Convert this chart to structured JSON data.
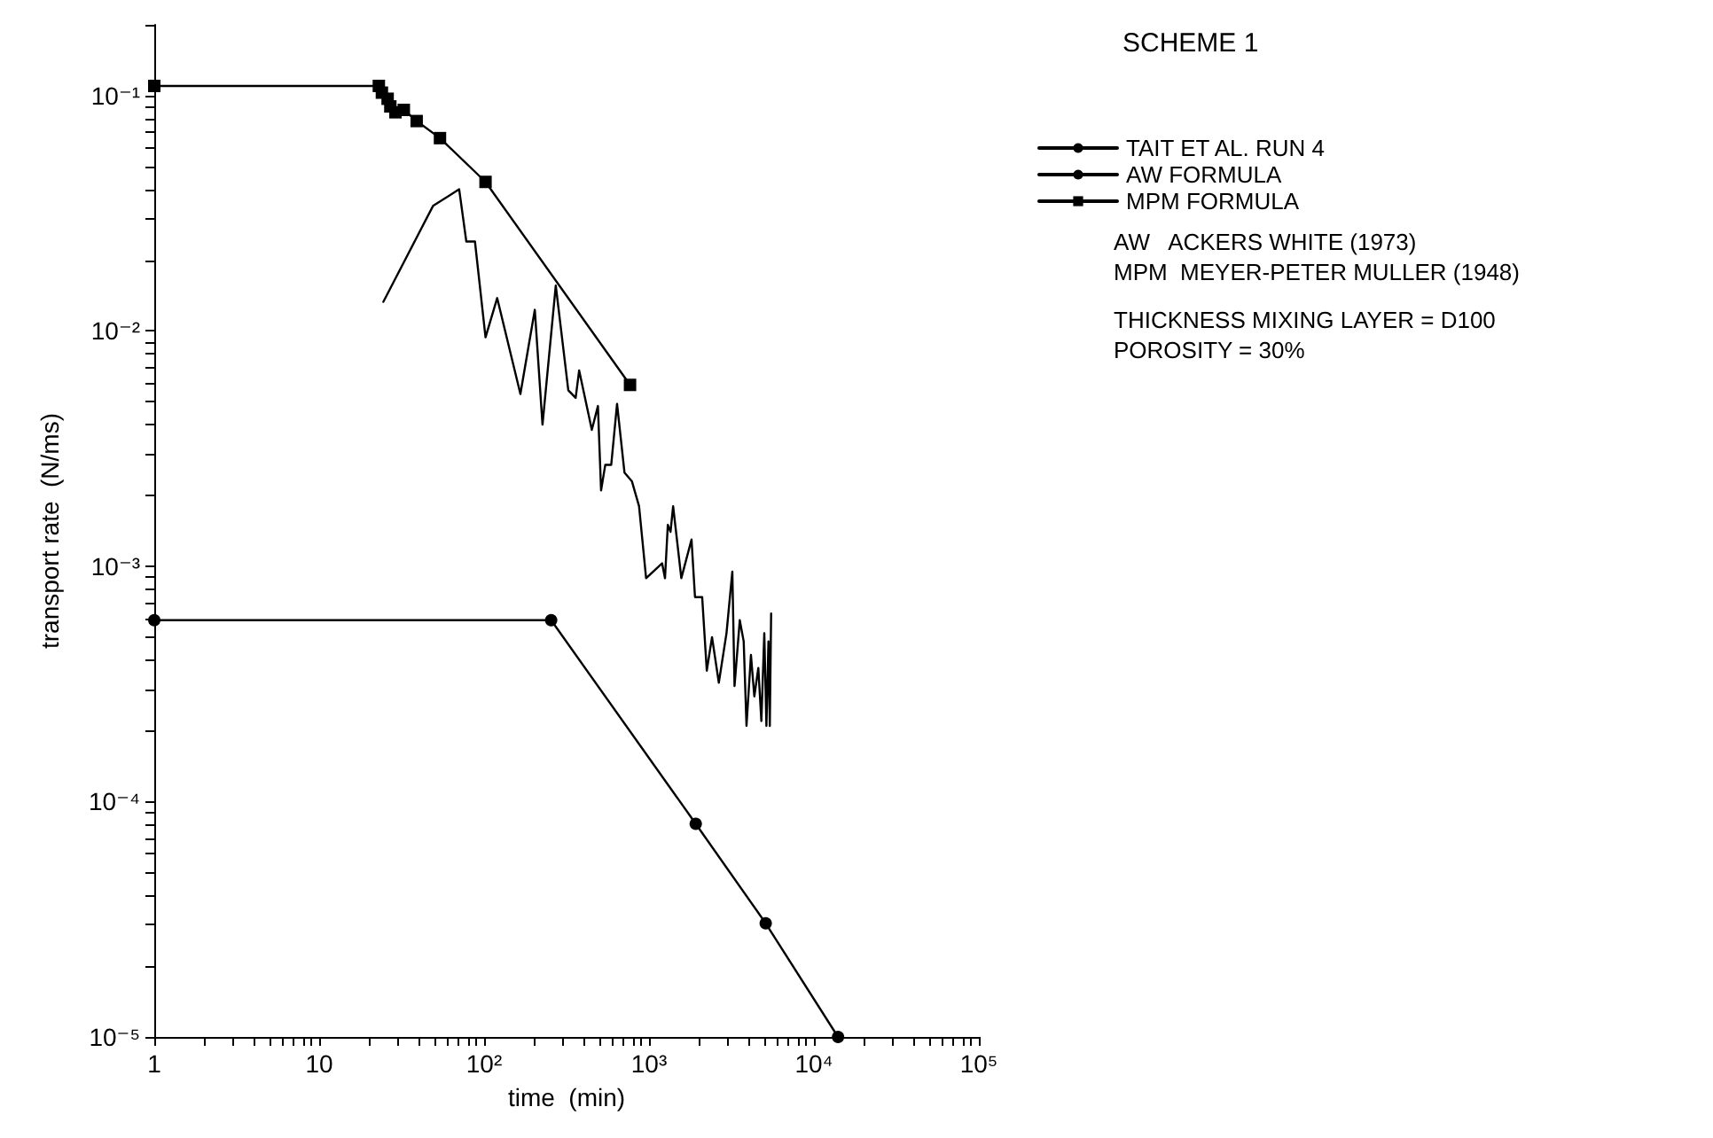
{
  "chart_data": {
    "type": "line",
    "title": "SCHEME 1",
    "xlabel": "time  (min)",
    "ylabel": "transport rate  (N/ms)",
    "log": "xy",
    "grid": false,
    "legend": "right",
    "line_style": "solid",
    "xlim": [
      1,
      100000
    ],
    "ylim": [
      1e-05,
      0.2
    ],
    "xticks": [
      {
        "value": 1,
        "label": "1"
      },
      {
        "value": 2,
        "label": null
      },
      {
        "value": 3,
        "label": null
      },
      {
        "value": 4,
        "label": null
      },
      {
        "value": 5,
        "label": null
      },
      {
        "value": 6,
        "label": null
      },
      {
        "value": 7,
        "label": null
      },
      {
        "value": 8,
        "label": null
      },
      {
        "value": 9,
        "label": null
      },
      {
        "value": 10,
        "label": "10"
      },
      {
        "value": 20,
        "label": null
      },
      {
        "value": 30,
        "label": null
      },
      {
        "value": 40,
        "label": null
      },
      {
        "value": 50,
        "label": null
      },
      {
        "value": 60,
        "label": null
      },
      {
        "value": 70,
        "label": null
      },
      {
        "value": 80,
        "label": null
      },
      {
        "value": 90,
        "label": null
      },
      {
        "value": 100,
        "label": "10²"
      },
      {
        "value": 200,
        "label": null
      },
      {
        "value": 300,
        "label": null
      },
      {
        "value": 400,
        "label": null
      },
      {
        "value": 500,
        "label": null
      },
      {
        "value": 600,
        "label": null
      },
      {
        "value": 700,
        "label": null
      },
      {
        "value": 800,
        "label": null
      },
      {
        "value": 900,
        "label": null
      },
      {
        "value": 1000,
        "label": "10³"
      },
      {
        "value": 2000,
        "label": null
      },
      {
        "value": 3000,
        "label": null
      },
      {
        "value": 4000,
        "label": null
      },
      {
        "value": 5000,
        "label": null
      },
      {
        "value": 6000,
        "label": null
      },
      {
        "value": 7000,
        "label": null
      },
      {
        "value": 8000,
        "label": null
      },
      {
        "value": 9000,
        "label": null
      },
      {
        "value": 10000,
        "label": "10⁴"
      },
      {
        "value": 20000,
        "label": null
      },
      {
        "value": 30000,
        "label": null
      },
      {
        "value": 40000,
        "label": null
      },
      {
        "value": 50000,
        "label": null
      },
      {
        "value": 60000,
        "label": null
      },
      {
        "value": 70000,
        "label": null
      },
      {
        "value": 80000,
        "label": null
      },
      {
        "value": 90000,
        "label": null
      },
      {
        "value": 100000,
        "label": "10⁵"
      }
    ],
    "yticks": [
      {
        "value": 1e-05,
        "label": "10⁻⁵"
      },
      {
        "value": 2e-05,
        "label": null
      },
      {
        "value": 3e-05,
        "label": null
      },
      {
        "value": 4e-05,
        "label": null
      },
      {
        "value": 5e-05,
        "label": null
      },
      {
        "value": 6e-05,
        "label": null
      },
      {
        "value": 7e-05,
        "label": null
      },
      {
        "value": 8e-05,
        "label": null
      },
      {
        "value": 9e-05,
        "label": null
      },
      {
        "value": 0.0001,
        "label": "10⁻⁴"
      },
      {
        "value": 0.0002,
        "label": null
      },
      {
        "value": 0.0003,
        "label": null
      },
      {
        "value": 0.0004,
        "label": null
      },
      {
        "value": 0.0005,
        "label": null
      },
      {
        "value": 0.0006,
        "label": null
      },
      {
        "value": 0.0007,
        "label": null
      },
      {
        "value": 0.0008,
        "label": null
      },
      {
        "value": 0.0009,
        "label": null
      },
      {
        "value": 0.001,
        "label": "10⁻³"
      },
      {
        "value": 0.002,
        "label": null
      },
      {
        "value": 0.003,
        "label": null
      },
      {
        "value": 0.004,
        "label": null
      },
      {
        "value": 0.005,
        "label": null
      },
      {
        "value": 0.006,
        "label": null
      },
      {
        "value": 0.007,
        "label": null
      },
      {
        "value": 0.008,
        "label": null
      },
      {
        "value": 0.009,
        "label": null
      },
      {
        "value": 0.01,
        "label": "10⁻²"
      },
      {
        "value": 0.02,
        "label": null
      },
      {
        "value": 0.03,
        "label": null
      },
      {
        "value": 0.04,
        "label": null
      },
      {
        "value": 0.05,
        "label": null
      },
      {
        "value": 0.06,
        "label": null
      },
      {
        "value": 0.07,
        "label": null
      },
      {
        "value": 0.08,
        "label": null
      },
      {
        "value": 0.09,
        "label": null
      },
      {
        "value": 0.1,
        "label": "10⁻¹"
      },
      {
        "value": 0.2,
        "label": null
      }
    ],
    "annotations": [
      "AW   ACKERS WHITE (1973)",
      "MPM  MEYER-PETER MULLER (1948)",
      "THICKNESS MIXING LAYER = D100",
      "POROSITY = 30%"
    ],
    "series": [
      {
        "name": "TAIT ET AL. RUN 4",
        "color": "#000000",
        "marker": "none",
        "x": [
          24.5,
          49,
          70.6,
          78,
          88,
          102,
          120,
          166,
          203,
          226,
          272,
          324,
          359,
          377,
          450,
          490,
          512,
          543,
          590,
          640,
          710,
          787,
          870,
          960,
          1200,
          1250,
          1300,
          1350,
          1400,
          1570,
          1810,
          1900,
          2100,
          2240,
          2410,
          2650,
          2950,
          3200,
          3300,
          3550,
          3750,
          3900,
          4150,
          4350,
          4600,
          4800,
          5000,
          5150,
          5300,
          5400,
          5500
        ],
        "values": [
          0.0133,
          0.034,
          0.04,
          0.024,
          0.024,
          0.0094,
          0.0138,
          0.0054,
          0.0123,
          0.004,
          0.0156,
          0.0056,
          0.0052,
          0.0068,
          0.0038,
          0.0048,
          0.0021,
          0.0027,
          0.0027,
          0.0049,
          0.0025,
          0.0023,
          0.0018,
          0.00089,
          0.00103,
          0.00089,
          0.0015,
          0.0014,
          0.0018,
          0.00089,
          0.0013,
          0.00074,
          0.00074,
          0.00036,
          0.0005,
          0.00032,
          0.00052,
          0.00095,
          0.00031,
          0.00059,
          0.00048,
          0.00021,
          0.00042,
          0.00028,
          0.00037,
          0.00022,
          0.00052,
          0.00021,
          0.00048,
          0.00021,
          0.00063
        ]
      },
      {
        "name": "AW FORMULA",
        "color": "#000000",
        "marker": "circle",
        "x": [
          1,
          255,
          1920,
          5100,
          14000
        ],
        "values": [
          0.00059,
          0.00059,
          8.05e-05,
          3.04e-05,
          1e-05
        ]
      },
      {
        "name": "MPM FORMULA",
        "color": "#000000",
        "marker": "square",
        "x": [
          1,
          23,
          24,
          26,
          27,
          29,
          32.6,
          39,
          54,
          102,
          767
        ],
        "values": [
          0.11,
          0.11,
          0.103,
          0.097,
          0.09,
          0.085,
          0.087,
          0.078,
          0.066,
          0.043,
          0.0059
        ]
      }
    ]
  }
}
